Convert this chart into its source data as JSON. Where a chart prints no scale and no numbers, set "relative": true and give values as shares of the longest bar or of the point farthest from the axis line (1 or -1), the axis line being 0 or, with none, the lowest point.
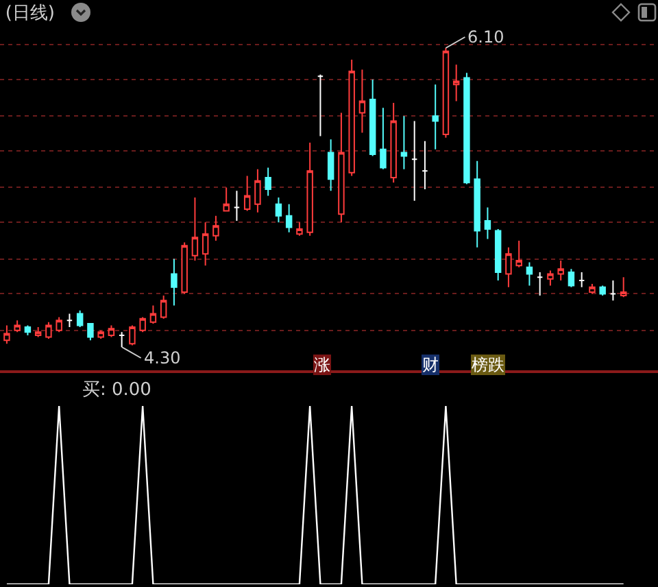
{
  "chart_data": [
    {
      "type": "candlestick",
      "title": "(日线)",
      "categories": [
        null,
        null,
        null,
        null,
        null,
        null,
        null,
        null,
        null,
        null,
        null,
        null,
        null,
        null,
        null,
        null,
        null,
        null,
        null,
        null,
        null,
        null,
        null,
        null,
        null,
        null,
        null,
        null,
        null,
        null,
        null,
        null,
        null,
        null,
        null,
        null,
        null,
        null,
        null,
        null,
        null,
        null,
        null,
        null,
        null,
        null,
        null,
        null,
        null,
        null,
        null,
        null,
        null,
        null,
        null,
        null,
        null,
        null,
        null,
        null
      ],
      "ohlc": [
        [
          4.34,
          4.43,
          4.32,
          4.38
        ],
        [
          4.4,
          4.46,
          4.39,
          4.43
        ],
        [
          4.42,
          4.43,
          4.37,
          4.39
        ],
        [
          4.37,
          4.42,
          4.36,
          4.39
        ],
        [
          4.36,
          4.45,
          4.35,
          4.43
        ],
        [
          4.4,
          4.48,
          4.39,
          4.46
        ],
        [
          4.46,
          4.5,
          4.42,
          4.46
        ],
        [
          4.5,
          4.52,
          4.42,
          4.43
        ],
        [
          4.44,
          4.44,
          4.34,
          4.36
        ],
        [
          4.36,
          4.4,
          4.35,
          4.39
        ],
        [
          4.37,
          4.43,
          4.36,
          4.41
        ],
        [
          4.37,
          4.39,
          4.3,
          4.37
        ],
        [
          4.32,
          4.43,
          4.31,
          4.42
        ],
        [
          4.4,
          4.48,
          4.39,
          4.47
        ],
        [
          4.45,
          4.55,
          4.44,
          4.5
        ],
        [
          4.48,
          4.61,
          4.47,
          4.58
        ],
        [
          4.74,
          4.83,
          4.55,
          4.66
        ],
        [
          4.63,
          4.93,
          4.62,
          4.91
        ],
        [
          4.85,
          5.2,
          4.82,
          4.96
        ],
        [
          4.86,
          5.05,
          4.79,
          4.98
        ],
        [
          4.97,
          5.09,
          4.94,
          5.03
        ],
        [
          5.12,
          5.26,
          5.12,
          5.16
        ],
        [
          5.14,
          5.24,
          5.06,
          5.14
        ],
        [
          5.13,
          5.33,
          5.12,
          5.21
        ],
        [
          5.16,
          5.37,
          5.11,
          5.3
        ],
        [
          5.32,
          5.38,
          5.21,
          5.25
        ],
        [
          5.16,
          5.2,
          5.05,
          5.09
        ],
        [
          5.09,
          5.16,
          4.99,
          5.02
        ],
        [
          4.98,
          5.05,
          4.97,
          5.01
        ],
        [
          4.99,
          5.53,
          4.97,
          5.36
        ],
        [
          5.93,
          5.94,
          5.57,
          5.93
        ],
        [
          5.47,
          5.55,
          5.24,
          5.31
        ],
        [
          5.1,
          5.71,
          5.05,
          5.47
        ],
        [
          5.35,
          6.03,
          5.33,
          5.96
        ],
        [
          5.71,
          5.97,
          5.59,
          5.78
        ],
        [
          5.79,
          5.91,
          5.45,
          5.46
        ],
        [
          5.49,
          5.74,
          5.37,
          5.38
        ],
        [
          5.32,
          5.77,
          5.29,
          5.66
        ],
        [
          5.47,
          5.69,
          5.37,
          5.45
        ],
        [
          5.43,
          5.66,
          5.18,
          5.43
        ],
        [
          5.36,
          5.54,
          5.25,
          5.36
        ],
        [
          5.69,
          5.88,
          5.49,
          5.66
        ],
        [
          5.58,
          6.1,
          5.56,
          6.08
        ],
        [
          5.88,
          6.0,
          5.78,
          5.9
        ],
        [
          5.92,
          5.95,
          5.28,
          5.29
        ],
        [
          5.31,
          5.42,
          4.9,
          5.0
        ],
        [
          5.06,
          5.14,
          4.95,
          5.01
        ],
        [
          5.0,
          5.01,
          4.7,
          4.75
        ],
        [
          4.74,
          4.9,
          4.66,
          4.86
        ],
        [
          4.79,
          4.94,
          4.78,
          4.82
        ],
        [
          4.78,
          4.81,
          4.67,
          4.74
        ],
        [
          4.72,
          4.75,
          4.61,
          4.72
        ],
        [
          4.71,
          4.76,
          4.67,
          4.74
        ],
        [
          4.74,
          4.82,
          4.7,
          4.77
        ],
        [
          4.75,
          4.77,
          4.66,
          4.67
        ],
        [
          4.7,
          4.75,
          4.66,
          4.7
        ],
        [
          4.63,
          4.68,
          4.62,
          4.66
        ],
        [
          4.66,
          4.67,
          4.61,
          4.62
        ],
        [
          4.62,
          4.7,
          4.58,
          4.62
        ],
        [
          4.61,
          4.72,
          4.6,
          4.63
        ]
      ],
      "colors": [
        "#ff3c3c",
        "#ff3c3c",
        "#54fcfc",
        "#ff3c3c",
        "#ff3c3c",
        "#ff3c3c",
        "#ffffff",
        "#54fcfc",
        "#54fcfc",
        "#ff3c3c",
        "#ff3c3c",
        "#ffffff",
        "#ff3c3c",
        "#ff3c3c",
        "#ff3c3c",
        "#ff3c3c",
        "#54fcfc",
        "#ff3c3c",
        "#ff3c3c",
        "#ff3c3c",
        "#ff3c3c",
        "#ff3c3c",
        "#ffffff",
        "#ff3c3c",
        "#ff3c3c",
        "#54fcfc",
        "#54fcfc",
        "#54fcfc",
        "#ff3c3c",
        "#ff3c3c",
        "#ffffff",
        "#54fcfc",
        "#ff3c3c",
        "#ff3c3c",
        "#ff3c3c",
        "#54fcfc",
        "#54fcfc",
        "#ff3c3c",
        "#54fcfc",
        "#ffffff",
        "#ffffff",
        "#54fcfc",
        "#ff3c3c",
        "#ff3c3c",
        "#54fcfc",
        "#54fcfc",
        "#54fcfc",
        "#54fcfc",
        "#ff3c3c",
        "#ff3c3c",
        "#54fcfc",
        "#ffffff",
        "#ff3c3c",
        "#ff3c3c",
        "#54fcfc",
        "#ffffff",
        "#ff3c3c",
        "#54fcfc",
        "#ffffff",
        "#ff3c3c"
      ],
      "yticks": [
        {
          "value": 4.4,
          "label": null
        },
        {
          "value": 4.62,
          "label": null
        },
        {
          "value": 4.83,
          "label": null
        },
        {
          "value": 5.05,
          "label": null
        },
        {
          "value": 5.26,
          "label": null
        },
        {
          "value": 5.48,
          "label": null
        },
        {
          "value": 5.69,
          "label": null
        },
        {
          "value": 5.91,
          "label": null
        },
        {
          "value": 6.12,
          "label": null
        }
      ],
      "grid": "y",
      "annotations": [
        "6.10",
        "4.30",
        "涨",
        "财",
        "榜跌"
      ]
    },
    {
      "type": "line",
      "relative": true,
      "categories": [
        null,
        null,
        null,
        null,
        null,
        null,
        null,
        null,
        null,
        null,
        null,
        null,
        null,
        null,
        null,
        null,
        null,
        null,
        null,
        null,
        null,
        null,
        null,
        null,
        null,
        null,
        null,
        null,
        null,
        null,
        null,
        null,
        null,
        null,
        null,
        null,
        null,
        null,
        null,
        null,
        null,
        null,
        null,
        null,
        null,
        null,
        null,
        null,
        null,
        null,
        null,
        null,
        null,
        null,
        null,
        null,
        null,
        null,
        null,
        null
      ],
      "series": [
        {
          "color": "#ffffff",
          "values": [
            0,
            0,
            0,
            0,
            0,
            1,
            0,
            0,
            0,
            0,
            0,
            0,
            0,
            1,
            0,
            0,
            0,
            0,
            0,
            0,
            0,
            0,
            0,
            0,
            0,
            0,
            0,
            0,
            0,
            1,
            0,
            0,
            0,
            1,
            0,
            0,
            0,
            0,
            0,
            0,
            0,
            0,
            1,
            0,
            0,
            0,
            0,
            0,
            0,
            0,
            0,
            0,
            0,
            0,
            0,
            0,
            0,
            0,
            0,
            0
          ]
        }
      ],
      "annotations": [
        "买: 0.00"
      ]
    }
  ]
}
